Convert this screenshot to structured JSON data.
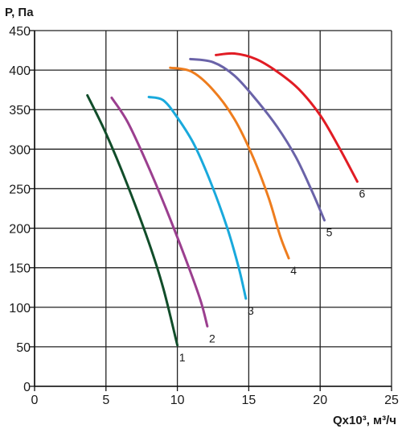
{
  "chart_data": {
    "type": "line",
    "ylabel": "P, Па",
    "xlabel": "Qx10³, м³/ч",
    "xlim": [
      0,
      25
    ],
    "ylim": [
      0,
      450
    ],
    "x_ticks": [
      0,
      5,
      10,
      15,
      20,
      25
    ],
    "y_ticks": [
      0,
      50,
      100,
      150,
      200,
      250,
      300,
      350,
      400,
      450
    ],
    "grid": true,
    "series": [
      {
        "name": "1",
        "color": "#114d2a",
        "points": [
          [
            3.7,
            368
          ],
          [
            5.0,
            320
          ],
          [
            6.5,
            255
          ],
          [
            8.0,
            182
          ],
          [
            9.0,
            125
          ],
          [
            10.0,
            52
          ]
        ]
      },
      {
        "name": "2",
        "color": "#9b3f8f",
        "points": [
          [
            5.4,
            365
          ],
          [
            6.5,
            335
          ],
          [
            7.8,
            285
          ],
          [
            9.2,
            225
          ],
          [
            10.6,
            160
          ],
          [
            11.6,
            110
          ],
          [
            12.1,
            76
          ]
        ]
      },
      {
        "name": "3",
        "color": "#19a9dc",
        "points": [
          [
            8.0,
            366
          ],
          [
            9.0,
            362
          ],
          [
            10.0,
            340
          ],
          [
            11.2,
            305
          ],
          [
            12.4,
            255
          ],
          [
            13.5,
            200
          ],
          [
            14.3,
            150
          ],
          [
            14.8,
            111
          ]
        ]
      },
      {
        "name": "4",
        "color": "#ee7d1e",
        "points": [
          [
            9.5,
            403
          ],
          [
            11.0,
            398
          ],
          [
            12.5,
            375
          ],
          [
            14.0,
            338
          ],
          [
            15.3,
            290
          ],
          [
            16.4,
            238
          ],
          [
            17.2,
            190
          ],
          [
            17.8,
            162
          ]
        ]
      },
      {
        "name": "5",
        "color": "#6a63a8",
        "points": [
          [
            10.9,
            414
          ],
          [
            12.5,
            410
          ],
          [
            14.0,
            393
          ],
          [
            15.5,
            363
          ],
          [
            17.0,
            328
          ],
          [
            18.3,
            290
          ],
          [
            19.4,
            248
          ],
          [
            20.3,
            210
          ]
        ]
      },
      {
        "name": "6",
        "color": "#e11c24",
        "points": [
          [
            12.7,
            419
          ],
          [
            14.0,
            421
          ],
          [
            15.5,
            414
          ],
          [
            17.0,
            398
          ],
          [
            18.5,
            376
          ],
          [
            20.0,
            343
          ],
          [
            21.3,
            303
          ],
          [
            22.6,
            259
          ]
        ]
      }
    ]
  }
}
